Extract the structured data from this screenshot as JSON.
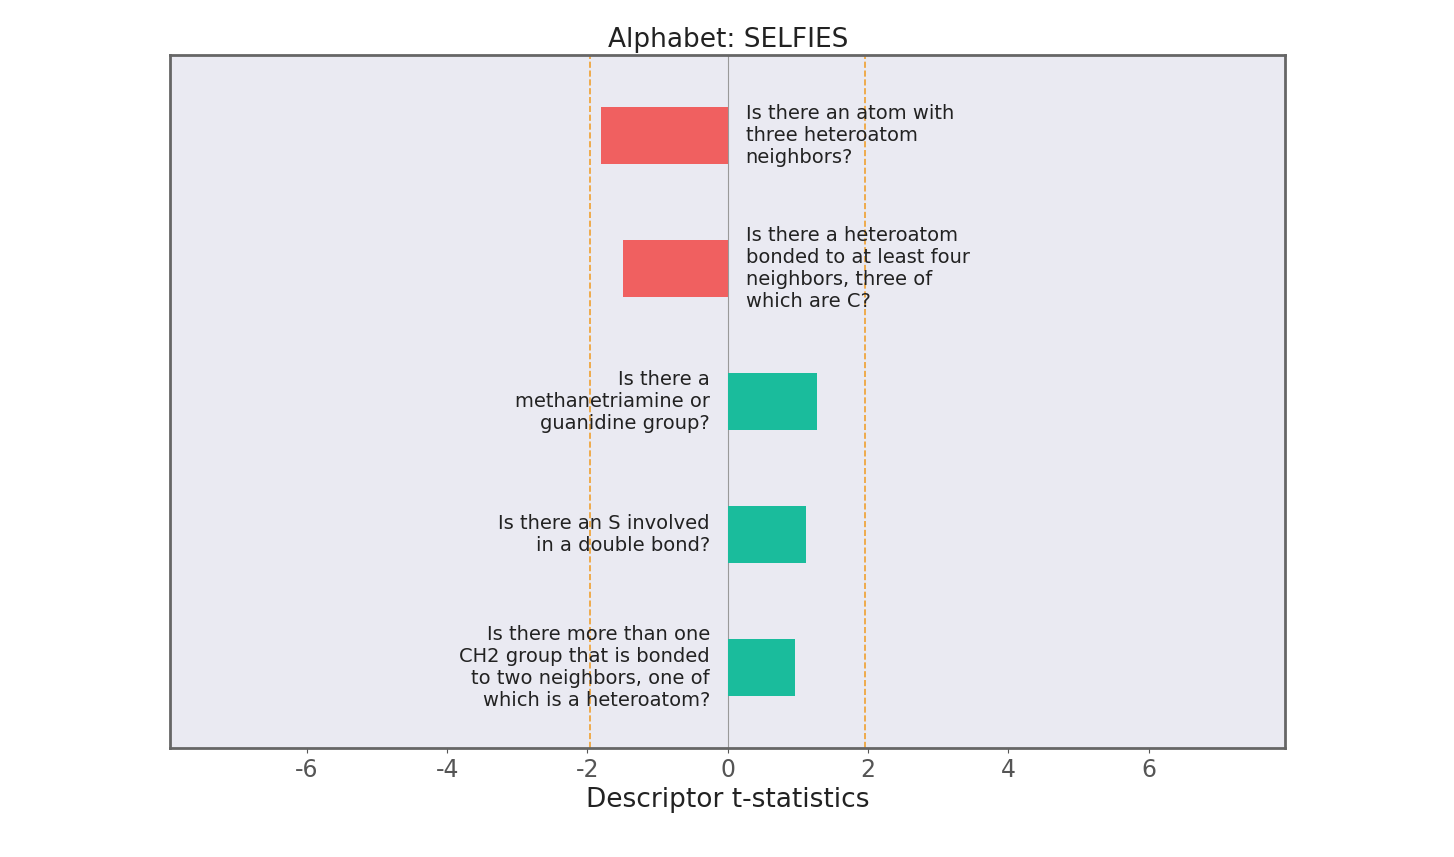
{
  "chart_data": {
    "type": "bar",
    "orientation": "horizontal",
    "title": "Alphabet: SELFIES",
    "x_label": "Descriptor t-statistics",
    "categories": [
      "Is there an atom with three heteroatom neighbors?",
      "Is there a heteroatom bonded to at least four neighbors, three of which are C?",
      "Is there a methanetriamine or guanidine group?",
      "Is there an S involved in a double bond?",
      "Is there more than one CH2 group that is bonded to two neighbors, one of which is a heteroatom?"
    ],
    "values": [
      -1.81,
      -1.49,
      1.27,
      1.11,
      0.96
    ],
    "colors": [
      "#f06060",
      "#f06060",
      "#1abc9c",
      "#1abc9c",
      "#1abc9c"
    ],
    "significance_lines": [
      -1.96,
      1.96
    ],
    "xlim": [
      -7.95,
      7.95
    ],
    "xticks": [
      -6,
      -4,
      -2,
      0,
      2,
      4,
      6
    ],
    "tick_labels": "x",
    "grid": false
  }
}
